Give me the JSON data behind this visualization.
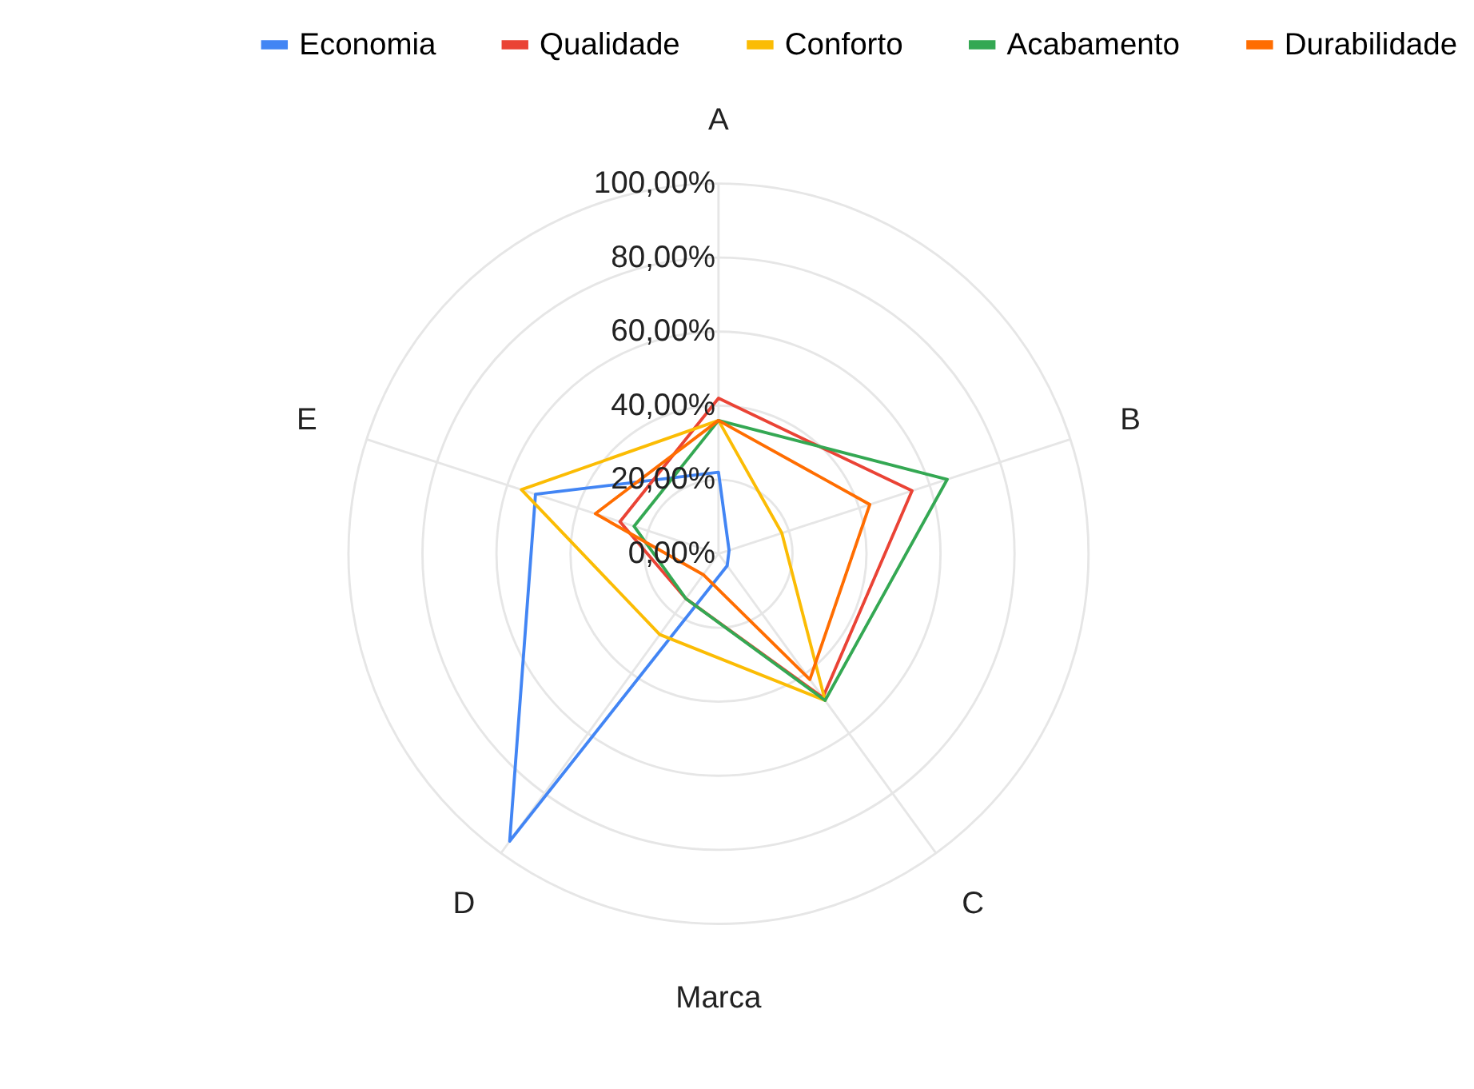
{
  "chart_data": {
    "type": "radar",
    "xlabel": "Marca",
    "categories": [
      "A",
      "B",
      "C",
      "D",
      "E"
    ],
    "series": [
      {
        "name": "Economia",
        "color": "#4285f4",
        "values": [
          22,
          3,
          4,
          96,
          52
        ]
      },
      {
        "name": "Qualidade",
        "color": "#ea4335",
        "values": [
          42,
          55,
          48,
          15,
          28
        ]
      },
      {
        "name": "Conforto",
        "color": "#fbbc04",
        "values": [
          36,
          18,
          49,
          27,
          56
        ]
      },
      {
        "name": "Acabamento",
        "color": "#34a853",
        "values": [
          36,
          65,
          49,
          15,
          24
        ]
      },
      {
        "name": "Durabilidade",
        "color": "#ff6d01",
        "values": [
          36,
          43,
          42,
          7,
          35
        ]
      }
    ],
    "ylim": [
      0,
      100
    ],
    "yticks": [
      {
        "value": 0,
        "label": "0,00%"
      },
      {
        "value": 20,
        "label": "20,00%"
      },
      {
        "value": 40,
        "label": "40,00%"
      },
      {
        "value": 60,
        "label": "60,00%"
      },
      {
        "value": 80,
        "label": "80,00%"
      },
      {
        "value": 100,
        "label": "100,00%"
      }
    ],
    "grid": true,
    "legend": "top"
  }
}
